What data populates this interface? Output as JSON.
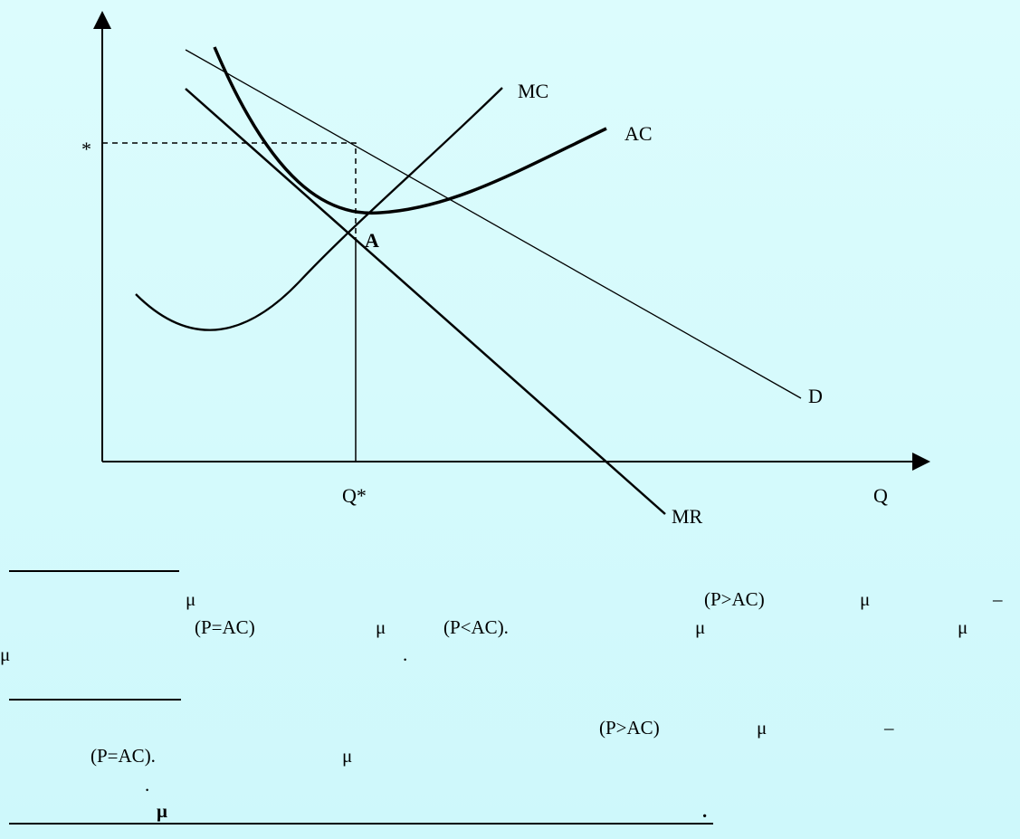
{
  "diagram": {
    "y_marker": "*",
    "labels": {
      "mc": "MC",
      "ac": "AC",
      "a": "A",
      "d": "D",
      "q_star": "Q*",
      "q": "Q",
      "mr": "MR"
    }
  },
  "text": {
    "lines": [
      [
        "μ",
        "(P>AC)",
        "μ",
        "–"
      ],
      [
        "(P=AC)",
        "μ",
        "(P<AC).",
        "μ",
        "μ"
      ],
      [
        "μ",
        "."
      ],
      [
        "(P>AC)",
        "μ",
        "–"
      ],
      [
        "(P=AC).",
        "μ"
      ],
      [
        "."
      ],
      [
        "μ",
        "."
      ]
    ]
  }
}
